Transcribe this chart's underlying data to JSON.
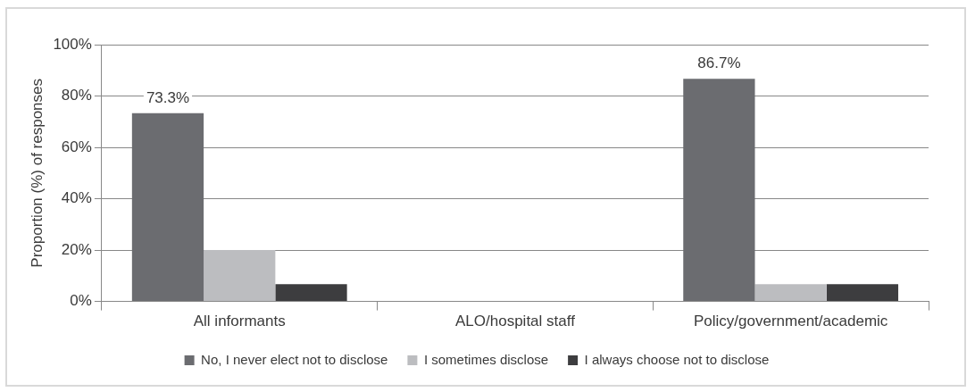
{
  "chart_data": {
    "type": "bar",
    "ylabel": "Proportion (%) of responses",
    "categories": [
      "All informants",
      "ALO/hospital staff",
      "Policy/government/academic"
    ],
    "series": [
      {
        "name": "No, I never elect not to disclose",
        "color": "#6b6c70",
        "values": [
          73.3,
          null,
          86.7
        ],
        "value_labels": [
          "73.3%",
          null,
          "86.7%"
        ]
      },
      {
        "name": "I sometimes disclose",
        "color": "#bcbdc0",
        "values": [
          20,
          null,
          6.7
        ]
      },
      {
        "name": "I always choose not to disclose",
        "color": "#3d3d3f",
        "values": [
          6.7,
          null,
          6.7
        ]
      }
    ],
    "ylim": [
      0,
      100
    ],
    "yticks": [
      {
        "value": 0,
        "label": "0%"
      },
      {
        "value": 20,
        "label": "20%"
      },
      {
        "value": 40,
        "label": "40%"
      },
      {
        "value": 60,
        "label": "60%"
      },
      {
        "value": 80,
        "label": "80%"
      },
      {
        "value": 100,
        "label": "100%"
      }
    ],
    "grid": "y",
    "legend": "bottom"
  }
}
